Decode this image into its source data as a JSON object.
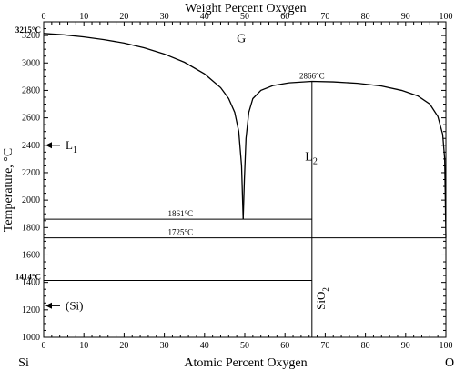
{
  "chart_data": {
    "type": "phase-diagram",
    "title": "",
    "xlabel_bottom": "Atomic Percent Oxygen",
    "xlabel_top": "Weight Percent Oxygen",
    "ylabel": "Temperature, °C",
    "xlim": [
      0,
      100
    ],
    "ylim": [
      1000,
      3300
    ],
    "x_ticks_bottom": [
      "0",
      "10",
      "20",
      "30",
      "40",
      "50",
      "60",
      "70",
      "80",
      "90",
      "100"
    ],
    "x_ticks_top": [
      "0",
      "10",
      "20",
      "30",
      "40",
      "50",
      "60",
      "70",
      "80",
      "90",
      "100"
    ],
    "y_ticks": [
      "1000",
      "1200",
      "1400",
      "1600",
      "1800",
      "2000",
      "2200",
      "2400",
      "2600",
      "2800",
      "3000",
      "3200"
    ],
    "left_element": "Si",
    "right_element": "O",
    "phase_regions": [
      {
        "label": "G",
        "x": 48,
        "y": 3150
      },
      {
        "label": "L",
        "sub": "2",
        "x": 65,
        "y": 2290
      }
    ],
    "compound": {
      "label": "SiO",
      "sub": "2",
      "x_at_percent_O": 66.7
    },
    "annotations": [
      {
        "text": "3215°C",
        "x": 0,
        "y": 3215,
        "bold": true
      },
      {
        "text": "1414°C",
        "x": 0,
        "y": 1414,
        "bold": true
      },
      {
        "text": "2866°C",
        "x": 66.7,
        "y": 2866,
        "bold": false
      },
      {
        "text": "1861°C",
        "x": 34,
        "y": 1861,
        "bold": false
      },
      {
        "text": "1725°C",
        "x": 34,
        "y": 1725,
        "bold": false
      }
    ],
    "arrows": [
      {
        "label": "L",
        "sub": "1",
        "y": 2400
      },
      {
        "label": "(Si)",
        "sub": "",
        "y": 1230
      }
    ],
    "isotherms": [
      {
        "y": 1861,
        "x_from": 0,
        "x_to": 66.7
      },
      {
        "y": 1725,
        "x_from": 0,
        "x_to": 100
      },
      {
        "y": 1414,
        "x_from": 0,
        "x_to": 66.7
      }
    ],
    "liquidus_left": [
      [
        0,
        3215
      ],
      [
        5,
        3205
      ],
      [
        10,
        3190
      ],
      [
        15,
        3170
      ],
      [
        20,
        3145
      ],
      [
        25,
        3110
      ],
      [
        30,
        3065
      ],
      [
        35,
        3005
      ],
      [
        40,
        2920
      ],
      [
        44,
        2820
      ],
      [
        46,
        2740
      ],
      [
        47.5,
        2640
      ],
      [
        48.5,
        2500
      ],
      [
        49.2,
        2250
      ],
      [
        49.6,
        1861
      ]
    ],
    "liquidus_right": [
      [
        49.6,
        1861
      ],
      [
        49.9,
        2150
      ],
      [
        50.3,
        2450
      ],
      [
        51,
        2640
      ],
      [
        52,
        2740
      ],
      [
        54,
        2800
      ],
      [
        57,
        2835
      ],
      [
        61,
        2855
      ],
      [
        66.7,
        2866
      ],
      [
        72,
        2862
      ],
      [
        78,
        2852
      ],
      [
        84,
        2832
      ],
      [
        89,
        2800
      ],
      [
        93,
        2760
      ],
      [
        96,
        2700
      ],
      [
        98,
        2610
      ],
      [
        99.2,
        2480
      ],
      [
        99.7,
        2300
      ],
      [
        100,
        1725
      ]
    ],
    "compound_line": {
      "x": 66.7,
      "y_from": 1000,
      "y_to": 2866
    }
  }
}
